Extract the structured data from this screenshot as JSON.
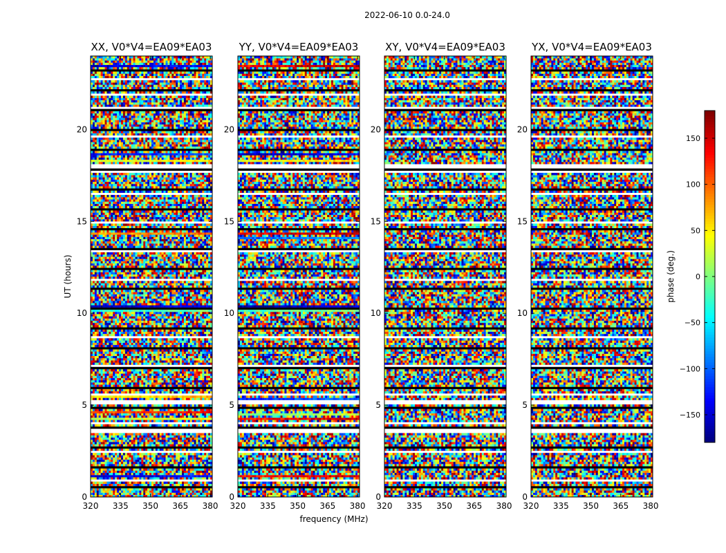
{
  "figure": {
    "suptitle": "2022-06-10 0.0-24.0"
  },
  "chart_data": {
    "type": "heatmap",
    "title": "2022-06-10 0.0-24.0",
    "xlabel": "frequency (MHz)",
    "ylabel": "UT (hours)",
    "xlim": [
      320,
      381
    ],
    "ylim": [
      0,
      24
    ],
    "x_ticks": [
      320,
      335,
      350,
      365,
      380
    ],
    "y_ticks": [
      0,
      5,
      10,
      15,
      20
    ],
    "colorscale": "jet",
    "panels": [
      {
        "name": "XX",
        "title": "XX, V0*V4=EA09*EA03"
      },
      {
        "name": "YY",
        "title": "YY, V0*V4=EA09*EA03"
      },
      {
        "name": "XY",
        "title": "XY, V0*V4=EA09*EA03"
      },
      {
        "name": "YX",
        "title": "YX, V0*V4=EA09*EA03"
      }
    ],
    "coherent_bands_ut_hours": {
      "XX": [
        {
          "ut": 23.5,
          "phase": -140
        },
        {
          "ut": 18.7,
          "phase": -120
        },
        {
          "ut": 18.3,
          "phase": 40
        },
        {
          "ut": 14.3,
          "phase": 90
        },
        {
          "ut": 10.4,
          "phase": -150
        },
        {
          "ut": 10.2,
          "phase": -20
        },
        {
          "ut": 5.5,
          "phase": 60
        },
        {
          "ut": 4.6,
          "phase": 120
        },
        {
          "ut": 4.3,
          "phase": 30
        },
        {
          "ut": 1.1,
          "phase": -140
        }
      ],
      "YY": [
        {
          "ut": 23.5,
          "phase": 150
        },
        {
          "ut": 18.7,
          "phase": -150
        },
        {
          "ut": 18.3,
          "phase": 50
        },
        {
          "ut": 14.3,
          "phase": 150
        },
        {
          "ut": 14.1,
          "phase": -90
        },
        {
          "ut": 10.4,
          "phase": -160
        },
        {
          "ut": 10.2,
          "phase": -10
        },
        {
          "ut": 5.3,
          "phase": -110
        },
        {
          "ut": 4.5,
          "phase": 10
        },
        {
          "ut": 4.3,
          "phase": 140
        },
        {
          "ut": 1.1,
          "phase": 140
        }
      ],
      "XY": [],
      "YX": []
    },
    "blank_rows_ut_hours": [
      21.9,
      18.0,
      17.7,
      5.2,
      3.6
    ],
    "colorbar": {
      "label": "phase (deg.)",
      "range": [
        -180,
        180
      ],
      "ticks": [
        150,
        100,
        50,
        0,
        -50,
        -100,
        -150
      ],
      "tick_labels": [
        "150",
        "100",
        "50",
        "0",
        "−50",
        "−100",
        "−150"
      ]
    }
  }
}
